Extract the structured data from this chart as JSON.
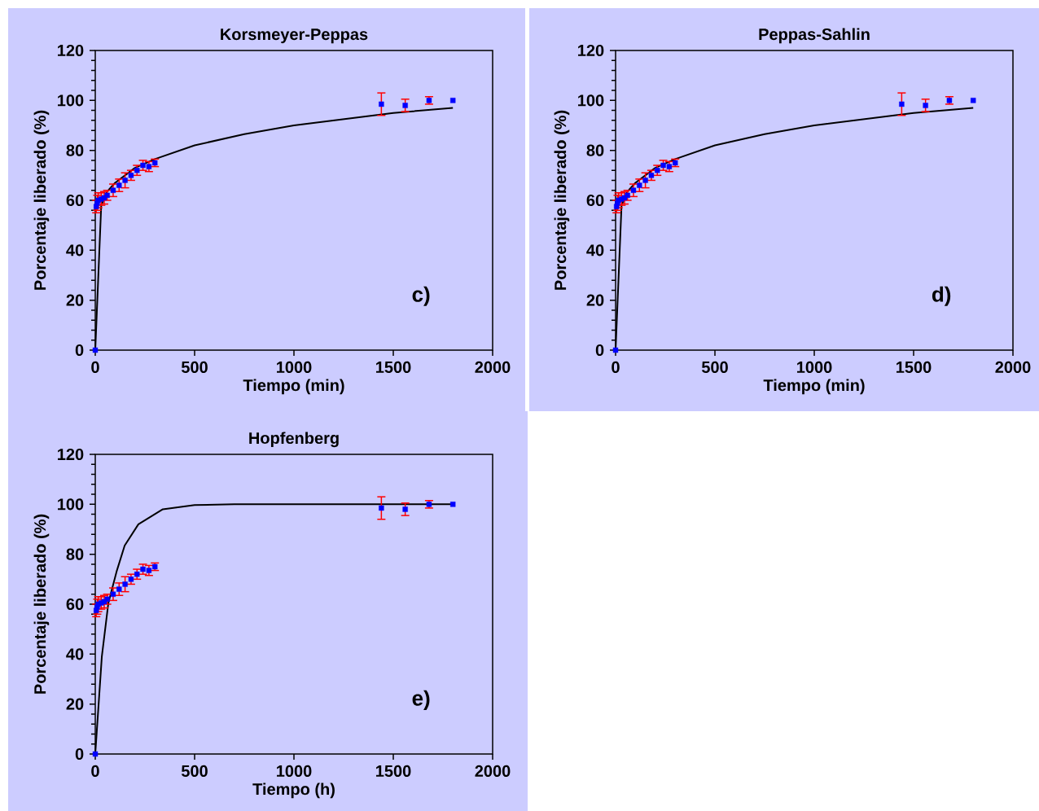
{
  "chart_data": [
    {
      "type": "scatter",
      "title": "Korsmeyer-Peppas",
      "xlabel": "Tiempo (min)",
      "ylabel": "Porcentaje liberado (%)",
      "annotations": [
        "c)"
      ],
      "xlim": [
        0,
        2000
      ],
      "ylim": [
        0,
        120
      ],
      "xticks": [
        0,
        500,
        1000,
        1500,
        2000
      ],
      "yticks": [
        0,
        20,
        40,
        60,
        80,
        100,
        120
      ],
      "series": [
        {
          "type": "scatter",
          "color": "#0000ff",
          "marker": "square",
          "x": [
            0,
            5,
            10,
            15,
            30,
            45,
            60,
            90,
            120,
            150,
            180,
            210,
            240,
            270,
            300,
            1440,
            1560,
            1680,
            1800
          ],
          "values": [
            0,
            57.5,
            59,
            60,
            60.5,
            61,
            62,
            64,
            66,
            68,
            70,
            72,
            74,
            73.5,
            75,
            98.5,
            98,
            100,
            100
          ],
          "errors": [
            null,
            2.5,
            3,
            3,
            2.5,
            2.5,
            2,
            2.5,
            2.5,
            3,
            2,
            2,
            2,
            2,
            1.5,
            4.5,
            2.5,
            1.5,
            null
          ]
        },
        {
          "type": "line",
          "color": "#000000",
          "marker": "none",
          "x": [
            0,
            30,
            60,
            100,
            200,
            300,
            500,
            750,
            1000,
            1250,
            1500,
            1800
          ],
          "values": [
            0,
            58,
            63.5,
            67,
            73,
            76.5,
            82,
            86.5,
            90,
            92.5,
            95,
            97
          ]
        }
      ]
    },
    {
      "type": "scatter",
      "title": "Peppas-Sahlin",
      "xlabel": "Tiempo (min)",
      "ylabel": "Porcentaje liberado (%)",
      "annotations": [
        "d)"
      ],
      "xlim": [
        0,
        2000
      ],
      "ylim": [
        0,
        120
      ],
      "xticks": [
        0,
        500,
        1000,
        1500,
        2000
      ],
      "yticks": [
        0,
        20,
        40,
        60,
        80,
        100,
        120
      ],
      "series": [
        {
          "type": "scatter",
          "color": "#0000ff",
          "marker": "square",
          "x": [
            0,
            5,
            10,
            15,
            30,
            45,
            60,
            90,
            120,
            150,
            180,
            210,
            240,
            270,
            300,
            1440,
            1560,
            1680,
            1800
          ],
          "values": [
            0,
            57.5,
            59,
            60,
            60.5,
            61,
            62,
            64,
            66,
            68,
            70,
            72,
            74,
            73.5,
            75,
            98.5,
            98,
            100,
            100
          ],
          "errors": [
            null,
            2.5,
            3,
            3,
            2.5,
            2.5,
            2,
            2.5,
            2.5,
            3,
            2,
            2,
            2,
            2,
            1.5,
            4.5,
            2.5,
            1.5,
            null
          ]
        },
        {
          "type": "line",
          "color": "#000000",
          "marker": "none",
          "x": [
            0,
            30,
            60,
            100,
            200,
            300,
            500,
            750,
            1000,
            1250,
            1500,
            1800
          ],
          "values": [
            0,
            58,
            63.5,
            67,
            73,
            76.5,
            82,
            86.5,
            90,
            92.5,
            95,
            97
          ]
        }
      ]
    },
    {
      "type": "scatter",
      "title": "Hopfenberg",
      "xlabel": "Tiempo (h)",
      "ylabel": "Porcentaje liberado (%)",
      "annotations": [
        "e)"
      ],
      "xlim": [
        0,
        2000
      ],
      "ylim": [
        0,
        120
      ],
      "xticks": [
        0,
        500,
        1000,
        1500,
        2000
      ],
      "yticks": [
        0,
        20,
        40,
        60,
        80,
        100,
        120
      ],
      "series": [
        {
          "type": "scatter",
          "color": "#0000ff",
          "marker": "square",
          "x": [
            0,
            5,
            10,
            15,
            30,
            45,
            60,
            90,
            120,
            150,
            180,
            210,
            240,
            270,
            300,
            1440,
            1560,
            1680,
            1800
          ],
          "values": [
            0,
            57.5,
            59,
            60,
            60.5,
            61,
            62,
            64,
            66,
            68,
            70,
            72,
            74,
            73.5,
            75,
            98.5,
            98,
            100,
            100
          ],
          "errors": [
            null,
            2.5,
            3,
            3,
            2.5,
            2.5,
            2,
            2.5,
            2.5,
            3,
            2,
            2,
            2,
            2,
            1.5,
            4.5,
            2.5,
            1.5,
            null
          ]
        },
        {
          "type": "line",
          "color": "#000000",
          "marker": "none",
          "x": [
            0,
            33,
            66,
            107,
            148,
            217,
            340,
            500,
            700,
            1000,
            1800
          ],
          "values": [
            0,
            39,
            60.5,
            73,
            83.5,
            92,
            98,
            99.7,
            100,
            100,
            100
          ]
        }
      ]
    }
  ]
}
